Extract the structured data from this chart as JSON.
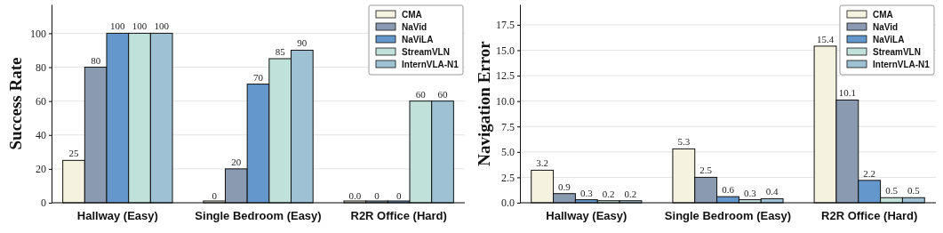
{
  "chart_data": [
    {
      "type": "bar",
      "ylabel": "Success Rate",
      "categories": [
        "Hallway (Easy)",
        "Single Bedroom (Easy)",
        "R2R Office (Hard)"
      ],
      "series": [
        {
          "name": "CMA",
          "color": "#f6f2e0",
          "values": [
            25,
            0,
            0
          ],
          "value_labels": [
            "25",
            "0",
            "0.0"
          ]
        },
        {
          "name": "NaVid",
          "color": "#8a9bb1",
          "values": [
            80,
            20,
            0
          ],
          "value_labels": [
            "80",
            "20",
            "0"
          ]
        },
        {
          "name": "NaViLA",
          "color": "#6498cd",
          "values": [
            100,
            70,
            0
          ],
          "value_labels": [
            "100",
            "70",
            "0"
          ]
        },
        {
          "name": "StreamVLN",
          "color": "#bfe1da",
          "values": [
            100,
            85,
            60
          ],
          "value_labels": [
            "100",
            "85",
            "60"
          ]
        },
        {
          "name": "InternVLA-N1",
          "color": "#9ec1d4",
          "values": [
            100,
            90,
            60
          ],
          "value_labels": [
            "100",
            "90",
            "60"
          ]
        }
      ],
      "ylim": [
        0,
        117
      ],
      "yticks": [
        0,
        20,
        40,
        60,
        80,
        100
      ],
      "grid": "y",
      "legend": "top right"
    },
    {
      "type": "bar",
      "ylabel": "Navigation Error",
      "categories": [
        "Hallway (Easy)",
        "Single Bedroom (Easy)",
        "R2R Office (Hard)"
      ],
      "series": [
        {
          "name": "CMA",
          "color": "#f6f2e0",
          "values": [
            3.2,
            5.3,
            15.4
          ]
        },
        {
          "name": "NaVid",
          "color": "#8a9bb1",
          "values": [
            0.9,
            2.5,
            10.1
          ]
        },
        {
          "name": "NaViLA",
          "color": "#6498cd",
          "values": [
            0.3,
            0.6,
            2.2
          ]
        },
        {
          "name": "StreamVLN",
          "color": "#bfe1da",
          "values": [
            0.2,
            0.3,
            0.5
          ]
        },
        {
          "name": "InternVLA-N1",
          "color": "#9ec1d4",
          "values": [
            0.2,
            0.4,
            0.5
          ]
        }
      ],
      "data_labels": true,
      "ylim": [
        0,
        19.5
      ],
      "yticks": [
        {
          "value": 0,
          "label": "0.0"
        },
        {
          "value": 2.5,
          "label": "2.5"
        },
        {
          "value": 5,
          "label": "5.0"
        },
        {
          "value": 7.5,
          "label": "7.5"
        },
        {
          "value": 10,
          "label": "10.0"
        },
        {
          "value": 12.5,
          "label": "12.5"
        },
        {
          "value": 15,
          "label": "15.0"
        },
        {
          "value": 17.5,
          "label": "17.5"
        }
      ],
      "grid": "y",
      "legend": "top right"
    }
  ]
}
